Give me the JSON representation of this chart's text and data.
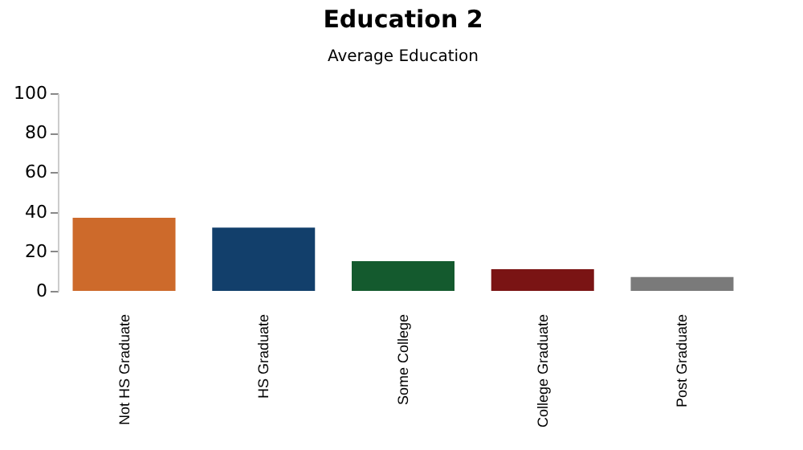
{
  "chart_data": {
    "type": "bar",
    "title": "Education 2",
    "subtitle": "Average Education",
    "categories": [
      "Not HS Graduate",
      "HS Graduate",
      "Some College",
      "College Graduate",
      "Post Graduate"
    ],
    "values": [
      37,
      32,
      15,
      11,
      7
    ],
    "colors": [
      "#cd6a2b",
      "#123f6b",
      "#145a2e",
      "#7a1414",
      "#7a7a7a"
    ],
    "ylim": [
      0,
      100
    ],
    "yticks": [
      0,
      20,
      40,
      60,
      80,
      100
    ],
    "grid": false
  }
}
